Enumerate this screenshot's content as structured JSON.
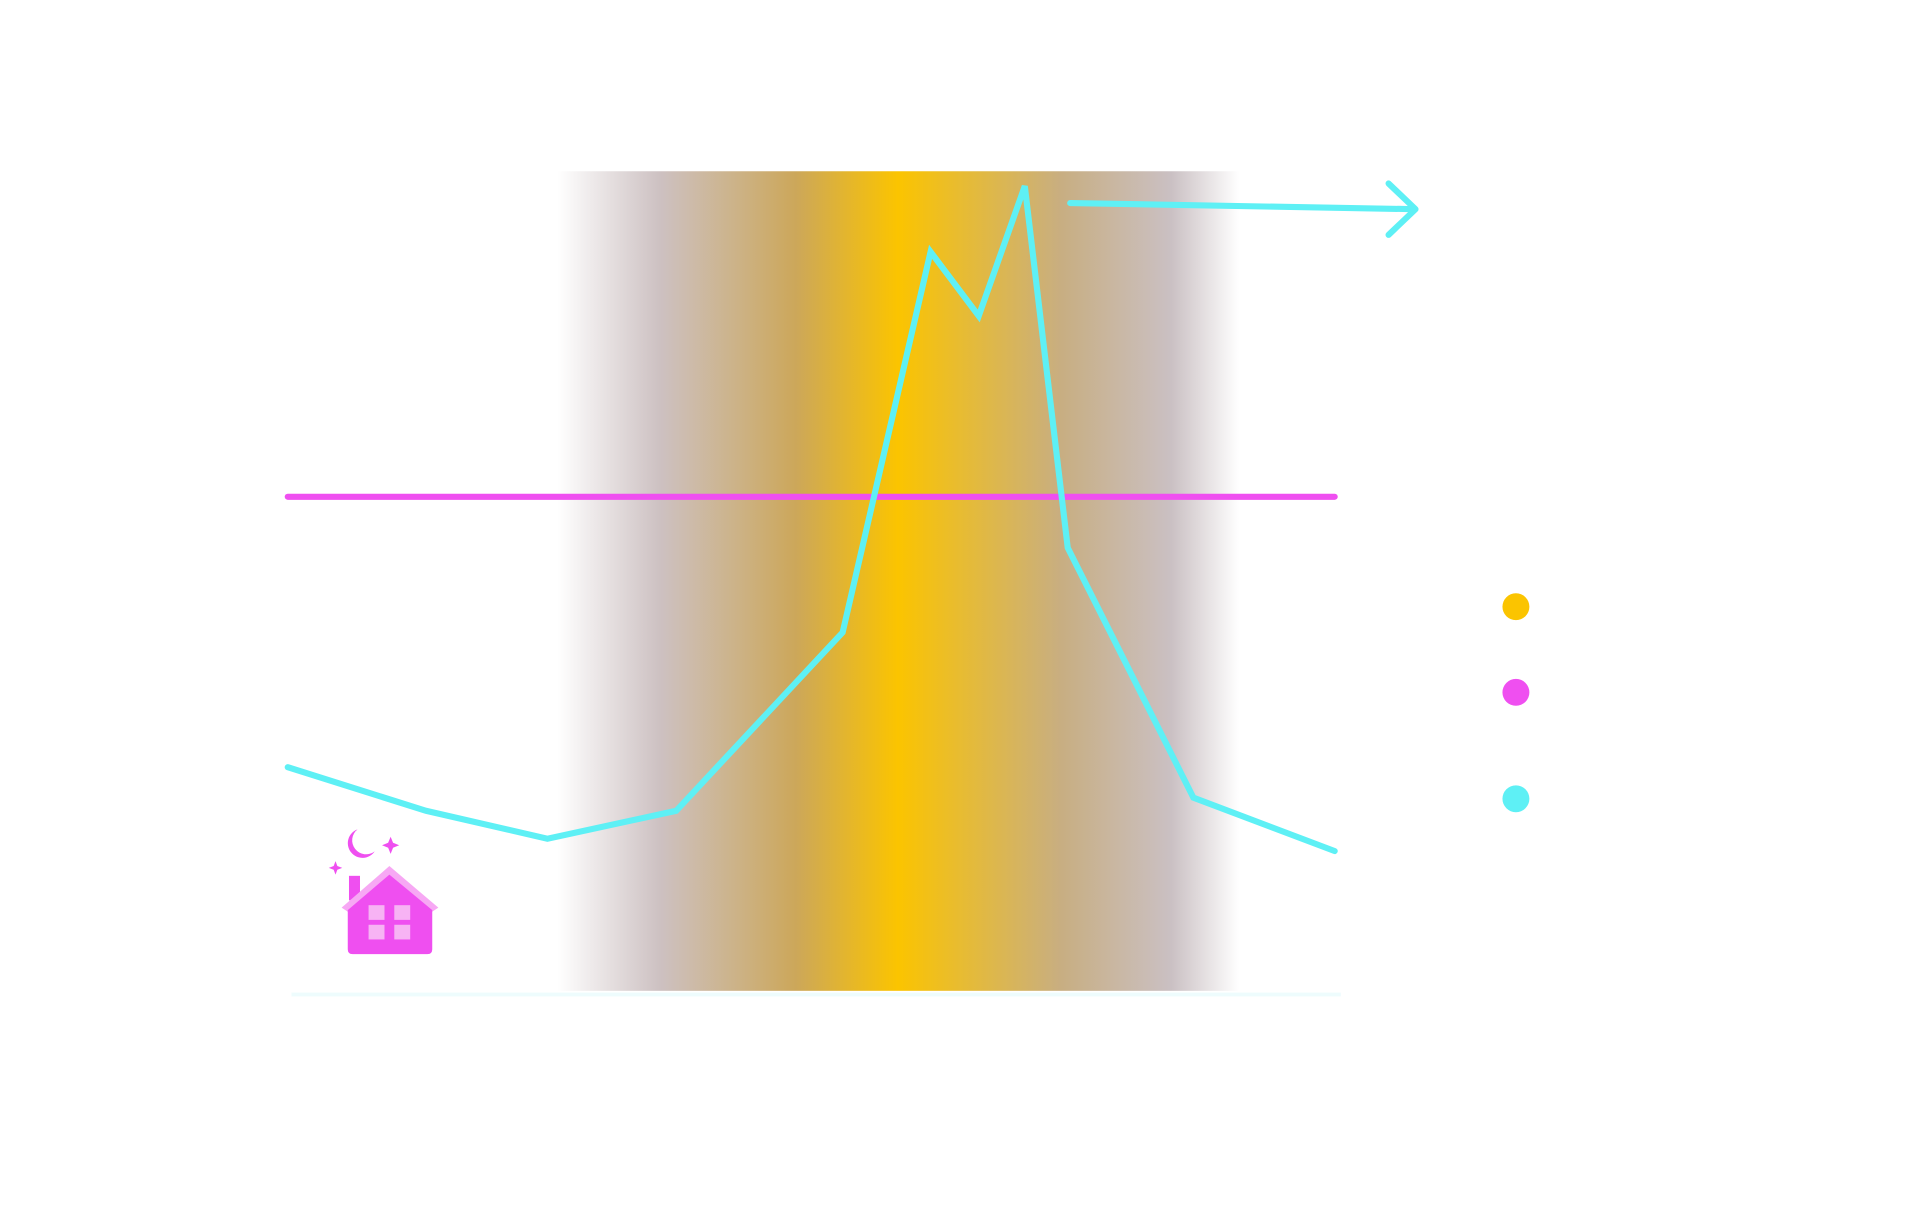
{
  "chart_data": {
    "type": "line",
    "xlim": [
      0,
      100
    ],
    "ylim": [
      0,
      100
    ],
    "band_color": "#fbc400",
    "legend": "right",
    "series": [
      {
        "color": "#5ef0f5",
        "x": [
          0,
          13.2,
          24.8,
          37.1,
          53.0,
          61.4,
          66.0,
          70.4,
          74.5,
          86.5,
          100
        ],
        "values": [
          27.5,
          22.2,
          18.8,
          22.2,
          43.9,
          90.2,
          82.4,
          98.2,
          54.2,
          23.8,
          17.3
        ]
      },
      {
        "color": "#ef4ff0",
        "x": [
          0,
          100
        ],
        "values": [
          60.4,
          60.4
        ]
      }
    ]
  }
}
